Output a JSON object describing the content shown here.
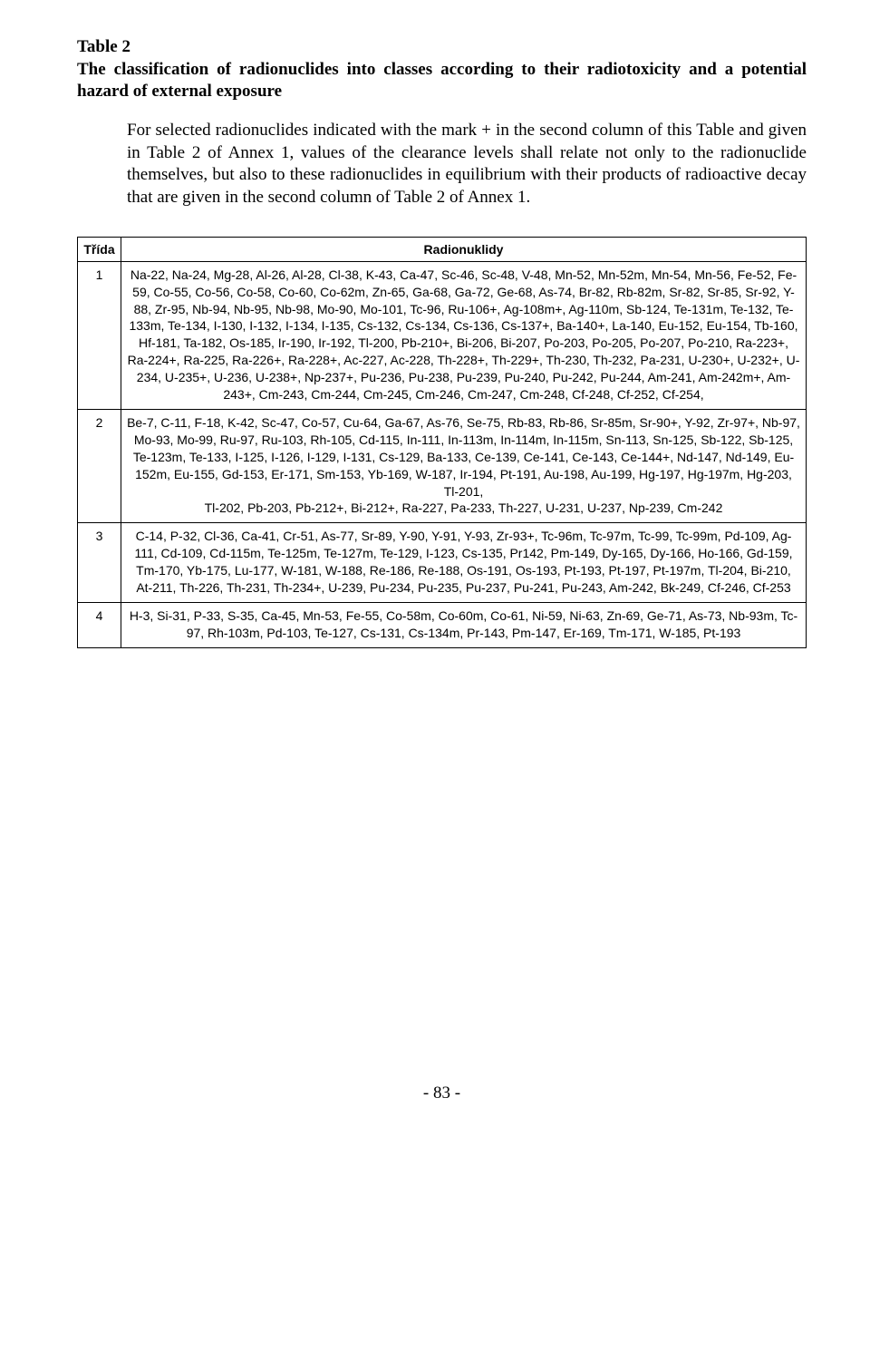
{
  "header": {
    "table_label": "Table 2",
    "title_desc": "The classification of radionuclides into classes according to their radiotoxicity and a potential hazard of external exposure"
  },
  "intro": "For selected radionuclides indicated with the mark + in the second column of this Table and given in Table 2 of Annex 1, values of the clearance levels shall relate not only to the radionuclide themselves, but also to these radionuclides in equilibrium with their products of radioactive decay that are given in the second column of Table 2 of Annex 1.",
  "table": {
    "columns": [
      "Třída",
      "Radionuklidy"
    ],
    "rows": [
      {
        "class": "1",
        "nuclides": "Na-22, Na-24, Mg-28, Al-26, Al-28, Cl-38, K-43, Ca-47, Sc-46, Sc-48, V-48, Mn-52, Mn-52m, Mn-54, Mn-56, Fe-52, Fe-59, Co-55, Co-56, Co-58, Co-60, Co-62m, Zn-65, Ga-68, Ga-72, Ge-68, As-74, Br-82, Rb-82m, Sr-82, Sr-85, Sr-92, Y-88, Zr-95, Nb-94, Nb-95, Nb-98, Mo-90, Mo-101, Tc-96, Ru-106+, Ag-108m+, Ag-110m, Sb-124, Te-131m, Te-132, Te-133m, Te-134, I-130, I-132, I-134, I-135, Cs-132, Cs-134, Cs-136, Cs-137+, Ba-140+, La-140, Eu-152, Eu-154, Tb-160, Hf-181, Ta-182, Os-185, Ir-190, Ir-192, Tl-200, Pb-210+, Bi-206, Bi-207, Po-203, Po-205, Po-207, Po-210, Ra-223+, Ra-224+, Ra-225, Ra-226+, Ra-228+, Ac-227, Ac-228, Th-228+, Th-229+, Th-230, Th-232, Pa-231, U-230+, U-232+, U-234, U-235+, U-236, U-238+, Np-237+, Pu-236, Pu-238, Pu-239, Pu-240, Pu-242, Pu-244, Am-241, Am-242m+, Am-243+, Cm-243, Cm-244, Cm-245, Cm-246, Cm-247, Cm-248, Cf-248, Cf-252, Cf-254,"
      },
      {
        "class": "2",
        "nuclides": "Be-7, C-11, F-18, K-42, Sc-47, Co-57, Cu-64, Ga-67, As-76, Se-75, Rb-83, Rb-86, Sr-85m, Sr-90+, Y-92, Zr-97+, Nb-97, Mo-93, Mo-99, Ru-97, Ru-103, Rh-105, Cd-115, In-111, In-113m, In-114m, In-115m, Sn-113, Sn-125, Sb-122, Sb-125, Te-123m, Te-133, I-125, I-126, I-129, I-131, Cs-129, Ba-133, Ce-139, Ce-141, Ce-143, Ce-144+, Nd-147, Nd-149, Eu-152m, Eu-155, Gd-153, Er-171, Sm-153, Yb-169, W-187, Ir-194, Pt-191, Au-198, Au-199, Hg-197, Hg-197m, Hg-203, Tl-201,\nTl-202, Pb-203, Pb-212+, Bi-212+, Ra-227, Pa-233, Th-227, U-231, U-237, Np-239, Cm-242"
      },
      {
        "class": "3",
        "nuclides": "C-14, P-32, Cl-36, Ca-41, Cr-51, As-77, Sr-89, Y-90, Y-91, Y-93, Zr-93+, Tc-96m, Tc-97m, Tc-99, Tc-99m, Pd-109, Ag-111, Cd-109, Cd-115m, Te-125m, Te-127m, Te-129, I-123, Cs-135, Pr142, Pm-149, Dy-165, Dy-166, Ho-166, Gd-159, Tm-170, Yb-175, Lu-177, W-181, W-188, Re-186, Re-188, Os-191, Os-193, Pt-193, Pt-197, Pt-197m, Tl-204, Bi-210, At-211, Th-226, Th-231, Th-234+, U-239, Pu-234, Pu-235, Pu-237, Pu-241, Pu-243, Am-242, Bk-249, Cf-246, Cf-253"
      },
      {
        "class": "4",
        "nuclides": "H-3, Si-31, P-33, S-35, Ca-45, Mn-53, Fe-55, Co-58m, Co-60m, Co-61, Ni-59, Ni-63, Zn-69, Ge-71, As-73, Nb-93m, Tc-97, Rh-103m, Pd-103, Te-127, Cs-131, Cs-134m, Pr-143, Pm-147, Er-169, Tm-171, W-185, Pt-193"
      }
    ]
  },
  "page_number": "- 83 -"
}
